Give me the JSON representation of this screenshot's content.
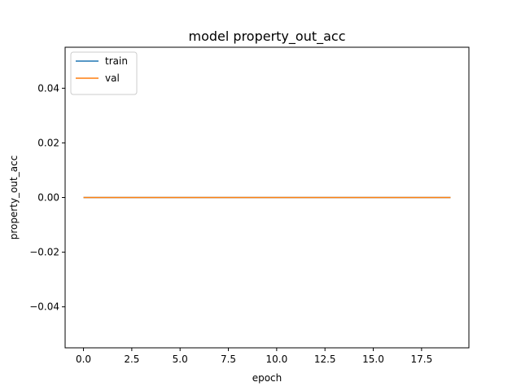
{
  "chart_data": {
    "type": "line",
    "title": "model property_out_acc",
    "xlabel": "epoch",
    "ylabel": "property_out_acc",
    "xlim": [
      -0.95,
      19.95
    ],
    "ylim": [
      -0.055,
      0.055
    ],
    "xticks": [
      0.0,
      2.5,
      5.0,
      7.5,
      10.0,
      12.5,
      15.0,
      17.5
    ],
    "xtick_labels": [
      "0.0",
      "2.5",
      "5.0",
      "7.5",
      "10.0",
      "12.5",
      "15.0",
      "17.5"
    ],
    "yticks": [
      -0.04,
      -0.02,
      0.0,
      0.02,
      0.04
    ],
    "ytick_labels": [
      "−0.04",
      "−0.02",
      "0.00",
      "0.02",
      "0.04"
    ],
    "grid": false,
    "legend_position": "top-left",
    "x": [
      0,
      1,
      2,
      3,
      4,
      5,
      6,
      7,
      8,
      9,
      10,
      11,
      12,
      13,
      14,
      15,
      16,
      17,
      18,
      19
    ],
    "series": [
      {
        "name": "train",
        "color": "#1f77b4",
        "values": [
          0,
          0,
          0,
          0,
          0,
          0,
          0,
          0,
          0,
          0,
          0,
          0,
          0,
          0,
          0,
          0,
          0,
          0,
          0,
          0
        ]
      },
      {
        "name": "val",
        "color": "#ff7f0e",
        "values": [
          0,
          0,
          0,
          0,
          0,
          0,
          0,
          0,
          0,
          0,
          0,
          0,
          0,
          0,
          0,
          0,
          0,
          0,
          0,
          0
        ]
      }
    ]
  }
}
